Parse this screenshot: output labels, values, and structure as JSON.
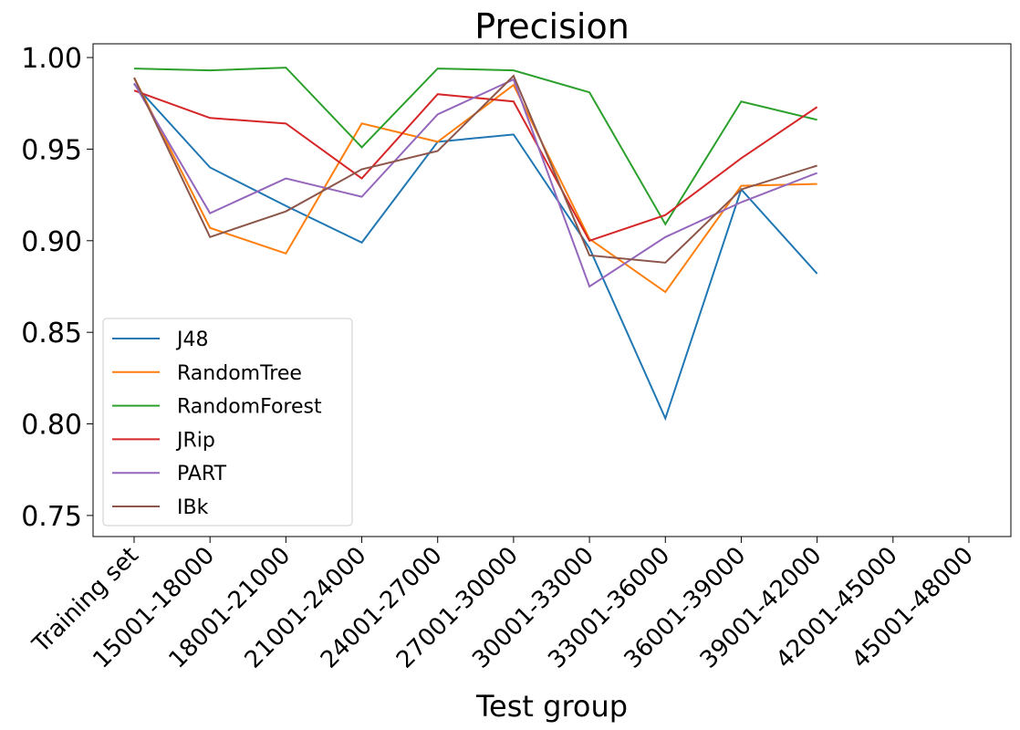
{
  "chart_data": {
    "type": "line",
    "title": "Precision",
    "x_label": "Test group",
    "categories": [
      "Training set",
      "15001-18000",
      "18001-21000",
      "21001-24000",
      "24001-27000",
      "27001-30000",
      "30001-33000",
      "33001-36000",
      "36001-39000",
      "39001-42000",
      "42001-45000",
      "45001-48000"
    ],
    "series": [
      {
        "name": "J48",
        "color": "#1f77b4",
        "values": [
          0.9855,
          0.94,
          0.919,
          0.899,
          0.954,
          0.958,
          0.896,
          0.803,
          0.928,
          0.882,
          null,
          null
        ]
      },
      {
        "name": "RandomTree",
        "color": "#ff7f0e",
        "values": [
          0.989,
          0.907,
          0.893,
          0.964,
          0.954,
          0.985,
          0.901,
          0.872,
          0.93,
          0.931,
          null,
          null
        ]
      },
      {
        "name": "RandomForest",
        "color": "#2ca02c",
        "values": [
          0.994,
          0.993,
          0.9945,
          0.951,
          0.994,
          0.993,
          0.981,
          0.909,
          0.976,
          0.966,
          null,
          null
        ]
      },
      {
        "name": "JRip",
        "color": "#d62728",
        "values": [
          0.982,
          0.967,
          0.964,
          0.934,
          0.98,
          0.976,
          0.9,
          0.914,
          0.945,
          0.973,
          null,
          null
        ]
      },
      {
        "name": "PART",
        "color": "#9467bd",
        "values": [
          0.986,
          0.915,
          0.934,
          0.924,
          0.969,
          0.988,
          0.875,
          0.902,
          0.921,
          0.937,
          null,
          null
        ]
      },
      {
        "name": "IBk",
        "color": "#8c564b",
        "values": [
          0.989,
          0.902,
          0.916,
          0.939,
          0.949,
          0.99,
          0.892,
          0.888,
          0.928,
          0.941,
          null,
          null
        ]
      }
    ],
    "ylim": [
      0.7385,
      1.0075
    ],
    "yticks": [
      {
        "value": 0.75,
        "label": "0.75"
      },
      {
        "value": 0.8,
        "label": "0.80"
      },
      {
        "value": 0.85,
        "label": "0.85"
      },
      {
        "value": 0.9,
        "label": "0.90"
      },
      {
        "value": 0.95,
        "label": "0.95"
      },
      {
        "value": 1.0,
        "label": "1.00"
      }
    ],
    "legend": "lower left"
  }
}
